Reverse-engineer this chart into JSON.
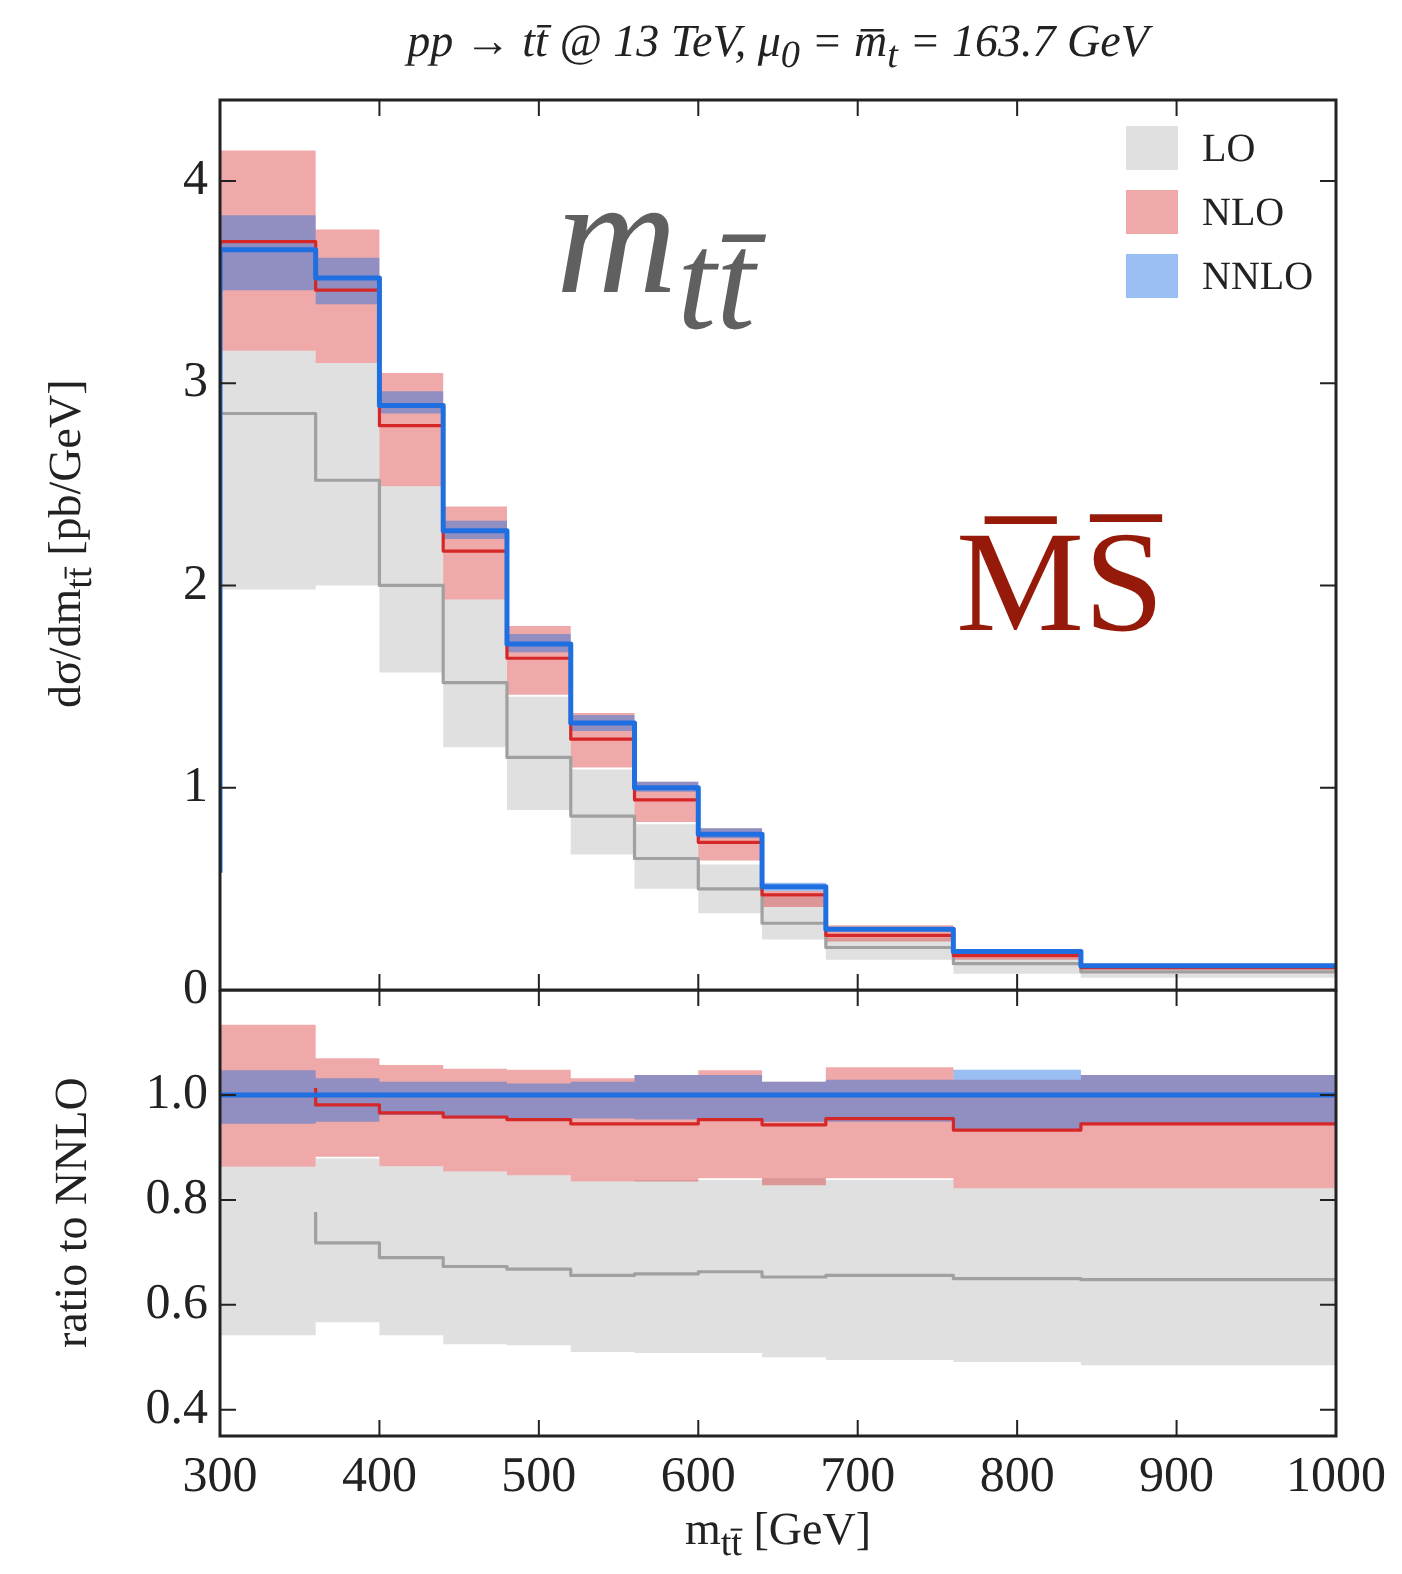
{
  "chart_data": [
    {
      "type": "step",
      "title": "pp → tt̄ @ 13 TeV, μ$_{0}$ = m̅$_{t}$ = 163.7 GeV",
      "ylabel": "dσ/dm$_{tt̄}$ [pb/GeV]",
      "x": [
        300,
        360,
        400,
        440,
        480,
        520,
        560,
        600,
        640,
        680,
        760,
        840,
        920,
        1000
      ],
      "series": [
        {
          "name": "LO",
          "color": "#a0a0a0",
          "values": [
            1.13,
            2.85,
            2.52,
            2.0,
            1.52,
            1.15,
            0.86,
            0.65,
            0.5,
            0.33,
            0.21,
            0.13,
            0.09,
            0.09
          ],
          "lower": [
            0.23,
            1.98,
            2.0,
            1.57,
            1.2,
            0.89,
            0.67,
            0.5,
            0.38,
            0.25,
            0.15,
            0.08,
            0.06,
            0.06
          ],
          "upper": [
            2.5,
            3.16,
            3.1,
            2.49,
            1.93,
            1.45,
            1.09,
            0.82,
            0.62,
            0.46,
            0.26,
            0.16,
            0.11,
            0.11
          ]
        },
        {
          "name": "NLO",
          "color": "#d62728",
          "values": [
            0.85,
            3.7,
            3.46,
            2.79,
            2.17,
            1.64,
            1.24,
            0.94,
            0.73,
            0.47,
            0.27,
            0.17,
            0.11,
            0.11
          ],
          "lower": [
            0.44,
            3.16,
            3.1,
            2.49,
            1.93,
            1.46,
            1.1,
            0.83,
            0.64,
            0.41,
            0.24,
            0.15,
            0.1,
            0.1
          ],
          "upper": [
            1.19,
            4.15,
            3.76,
            3.05,
            2.39,
            1.8,
            1.37,
            1.03,
            0.8,
            0.49,
            0.32,
            0.19,
            0.12,
            0.12
          ]
        },
        {
          "name": "NNLO",
          "color": "#1f6fe0",
          "values": [
            0.58,
            3.66,
            3.52,
            2.89,
            2.27,
            1.71,
            1.32,
            1.0,
            0.77,
            0.51,
            0.3,
            0.19,
            0.12,
            0.12
          ],
          "lower": [
            0.35,
            3.46,
            3.39,
            2.85,
            2.23,
            1.67,
            1.28,
            0.98,
            0.75,
            0.49,
            0.29,
            0.18,
            0.11,
            0.11
          ],
          "upper": [
            0.67,
            3.83,
            3.62,
            2.96,
            2.32,
            1.76,
            1.36,
            1.03,
            0.8,
            0.53,
            0.31,
            0.2,
            0.13,
            0.13
          ]
        }
      ],
      "xlim": [
        300,
        1000
      ],
      "xticks": [
        300,
        400,
        500,
        600,
        700,
        800,
        900,
        1000
      ],
      "ylim": [
        0,
        4.4
      ],
      "yticks": [
        0,
        1,
        2,
        3,
        4
      ],
      "tick_labels": "y",
      "legend": "top right",
      "annotations": [
        "m$_{tt̄}$",
        "M̅S̅"
      ]
    },
    {
      "type": "step",
      "ylabel": "ratio to NNLO",
      "xlabel": "m$_{tt̄}$ [GeV]",
      "x": [
        300,
        360,
        400,
        440,
        480,
        520,
        560,
        600,
        640,
        680,
        760,
        840,
        920,
        1000
      ],
      "series": [
        {
          "color": "#a0a0a0",
          "values": [
            null,
            0.777,
            0.718,
            0.69,
            0.673,
            0.668,
            0.656,
            0.659,
            0.663,
            0.653,
            0.656,
            0.65,
            0.648,
            0.648
          ],
          "lower": [
            0.415,
            0.542,
            0.567,
            0.542,
            0.525,
            0.523,
            0.51,
            0.508,
            0.508,
            0.5,
            0.495,
            0.491,
            0.485,
            0.485
          ],
          "upper": [
            1.2,
            0.863,
            0.879,
            0.864,
            0.854,
            0.847,
            0.835,
            0.838,
            0.838,
            0.841,
            0.838,
            0.822,
            0.822,
            0.822
          ]
        },
        {
          "color": "#d62728",
          "values": [
            null,
            1.013,
            0.981,
            0.966,
            0.958,
            0.953,
            0.945,
            0.945,
            0.953,
            0.943,
            0.955,
            0.933,
            0.945,
            0.945
          ],
          "lower": [
            0.78,
            0.863,
            0.882,
            0.864,
            0.854,
            0.847,
            0.835,
            0.835,
            0.841,
            0.828,
            0.841,
            0.822,
            0.822,
            0.822
          ],
          "upper": [
            1.2,
            1.134,
            1.07,
            1.057,
            1.05,
            1.048,
            1.032,
            1.038,
            1.047,
            1.025,
            1.053,
            1.029,
            1.038,
            1.038
          ]
        },
        {
          "color": "#1f6fe0",
          "values": [
            1,
            1,
            1,
            1,
            1,
            1,
            1,
            1,
            1,
            1,
            1,
            1,
            1,
            1
          ],
          "lower": [
            0.615,
            0.945,
            0.949,
            0.962,
            0.955,
            0.955,
            0.955,
            0.953,
            0.955,
            0.949,
            0.949,
            0.933,
            0.945,
            0.945
          ],
          "upper": [
            1.165,
            1.047,
            1.032,
            1.025,
            1.025,
            1.022,
            1.025,
            1.038,
            1.038,
            1.025,
            1.029,
            1.048,
            1.038,
            1.038
          ]
        }
      ],
      "xlim": [
        300,
        1000
      ],
      "xticks": [
        300,
        400,
        500,
        600,
        700,
        800,
        900,
        1000
      ],
      "ylim": [
        0.35,
        1.2
      ],
      "yticks": [
        0.4,
        0.6,
        0.8,
        {
          "value": 1,
          "label": "1.0"
        }
      ]
    }
  ]
}
